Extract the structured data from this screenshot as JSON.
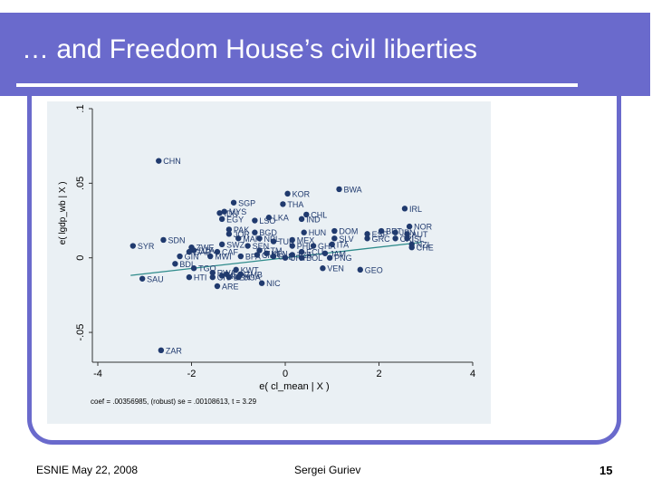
{
  "slide": {
    "title": "… and Freedom House’s civil liberties",
    "footer_left": "ESNIE May 22, 2008",
    "footer_center": "Sergei Guriev",
    "page_number": "15"
  },
  "colors": {
    "title_bar": "#6a6acc",
    "points": "#203a6e",
    "fit_line": "#2e8b8b",
    "plot_bg": "#eaf0f4"
  },
  "chart_data": {
    "type": "scatter",
    "title": "",
    "xlabel": "e( cl_mean | X )",
    "ylabel": "e( lgdp_wb | X )",
    "note": "coef = .00356985, (robust) se = .00108613, t = 3.29",
    "xlim": [
      -4,
      4
    ],
    "ylim": [
      -0.07,
      0.1
    ],
    "x_ticks": [
      -4,
      -2,
      0,
      2,
      4
    ],
    "y_ticks": [
      -0.05,
      0,
      0.05,
      0.1
    ],
    "x_tick_labels": [
      "-4",
      "-2",
      "0",
      "2",
      "4"
    ],
    "y_tick_labels": [
      "-.05",
      "0",
      ".05",
      ".1"
    ],
    "fit_line": {
      "slope": 0.00356985,
      "intercept": 0
    },
    "points": [
      {
        "label": "CHN",
        "x": -2.7,
        "y": 0.065
      },
      {
        "label": "BWA",
        "x": 1.15,
        "y": 0.046
      },
      {
        "label": "KOR",
        "x": 0.05,
        "y": 0.043
      },
      {
        "label": "SGP",
        "x": -1.1,
        "y": 0.037
      },
      {
        "label": "THA",
        "x": -0.05,
        "y": 0.036
      },
      {
        "label": "IRL",
        "x": 2.55,
        "y": 0.033
      },
      {
        "label": "MYS",
        "x": -1.3,
        "y": 0.031
      },
      {
        "label": "CHL",
        "x": 0.45,
        "y": 0.029
      },
      {
        "label": "IDN",
        "x": -1.4,
        "y": 0.03
      },
      {
        "label": "EGY",
        "x": -1.35,
        "y": 0.026
      },
      {
        "label": "LSO",
        "x": -0.65,
        "y": 0.025
      },
      {
        "label": "LKA",
        "x": -0.35,
        "y": 0.027
      },
      {
        "label": "IND",
        "x": 0.35,
        "y": 0.026
      },
      {
        "label": "NOR",
        "x": 2.65,
        "y": 0.021
      },
      {
        "label": "PAK",
        "x": -1.2,
        "y": 0.019
      },
      {
        "label": "JOR",
        "x": -1.2,
        "y": 0.016
      },
      {
        "label": "BGD",
        "x": -0.65,
        "y": 0.017
      },
      {
        "label": "HUN",
        "x": 0.4,
        "y": 0.017
      },
      {
        "label": "DOM",
        "x": 1.05,
        "y": 0.018
      },
      {
        "label": "BRT",
        "x": 2.05,
        "y": 0.018
      },
      {
        "label": "ESP",
        "x": 1.75,
        "y": 0.016
      },
      {
        "label": "JPN",
        "x": 2.35,
        "y": 0.017
      },
      {
        "label": "AUT",
        "x": 2.6,
        "y": 0.016
      },
      {
        "label": "MAR",
        "x": -1.0,
        "y": 0.013
      },
      {
        "label": "NPL",
        "x": -0.55,
        "y": 0.013
      },
      {
        "label": "SDN",
        "x": -2.6,
        "y": 0.012
      },
      {
        "label": "TUR",
        "x": -0.25,
        "y": 0.011
      },
      {
        "label": "MEX",
        "x": 0.15,
        "y": 0.012
      },
      {
        "label": "SLV",
        "x": 1.05,
        "y": 0.013
      },
      {
        "label": "GRC",
        "x": 1.75,
        "y": 0.013
      },
      {
        "label": "CRI",
        "x": 2.35,
        "y": 0.013
      },
      {
        "label": "ISL",
        "x": 2.6,
        "y": 0.013
      },
      {
        "label": "SYR",
        "x": -3.25,
        "y": 0.008
      },
      {
        "label": "ZWE",
        "x": -2.0,
        "y": 0.007
      },
      {
        "label": "SWZ",
        "x": -1.35,
        "y": 0.009
      },
      {
        "label": "SEN",
        "x": -0.8,
        "y": 0.008
      },
      {
        "label": "PHL",
        "x": 0.15,
        "y": 0.008
      },
      {
        "label": "GHA",
        "x": 0.6,
        "y": 0.008
      },
      {
        "label": "ITA",
        "x": 1.0,
        "y": 0.009
      },
      {
        "label": "NZL",
        "x": 2.7,
        "y": 0.009
      },
      {
        "label": "CHE",
        "x": 2.7,
        "y": 0.007
      },
      {
        "label": "GAB",
        "x": -2.05,
        "y": 0.004
      },
      {
        "label": "DZA",
        "x": -1.95,
        "y": 0.005
      },
      {
        "label": "CAF",
        "x": -1.45,
        "y": 0.004
      },
      {
        "label": "GTM",
        "x": -0.55,
        "y": 0.005
      },
      {
        "label": "ECU",
        "x": 0.35,
        "y": 0.004
      },
      {
        "label": "TZA",
        "x": 0.15,
        "y": 0.002
      },
      {
        "label": "JAM",
        "x": 0.85,
        "y": 0.003
      },
      {
        "label": "GIN",
        "x": -2.25,
        "y": 0.001
      },
      {
        "label": "MWI",
        "x": -1.6,
        "y": 0.001
      },
      {
        "label": "BFA",
        "x": -0.95,
        "y": 0.001
      },
      {
        "label": "KEN",
        "x": -0.4,
        "y": 0.003
      },
      {
        "label": "CMR",
        "x": -0.6,
        "y": 0.002
      },
      {
        "label": "SLE",
        "x": -0.25,
        "y": 0.001
      },
      {
        "label": "URY",
        "x": 0.0,
        "y": 0.0
      },
      {
        "label": "BOL",
        "x": 0.35,
        "y": 0.0
      },
      {
        "label": "PNG",
        "x": 0.95,
        "y": 0.0
      },
      {
        "label": "BDI",
        "x": -2.35,
        "y": -0.004
      },
      {
        "label": "TGO",
        "x": -1.95,
        "y": -0.007
      },
      {
        "label": "KWT",
        "x": -1.05,
        "y": -0.008
      },
      {
        "label": "RWA",
        "x": -1.55,
        "y": -0.01
      },
      {
        "label": "COG",
        "x": -1.25,
        "y": -0.011
      },
      {
        "label": "ZMB",
        "x": -0.95,
        "y": -0.011
      },
      {
        "label": "MLI",
        "x": -1.35,
        "y": -0.012
      },
      {
        "label": "BEN",
        "x": -1.2,
        "y": -0.013
      },
      {
        "label": "HTI",
        "x": -2.05,
        "y": -0.013
      },
      {
        "label": "CIV",
        "x": -1.55,
        "y": -0.013
      },
      {
        "label": "UGA",
        "x": -1.0,
        "y": -0.013
      },
      {
        "label": "VEN",
        "x": 0.8,
        "y": -0.007
      },
      {
        "label": "GEO",
        "x": 1.6,
        "y": -0.008
      },
      {
        "label": "SAU",
        "x": -3.05,
        "y": -0.014
      },
      {
        "label": "NIC",
        "x": -0.5,
        "y": -0.017
      },
      {
        "label": "ARE",
        "x": -1.45,
        "y": -0.019
      },
      {
        "label": "ZAR",
        "x": -2.65,
        "y": -0.062
      }
    ]
  }
}
